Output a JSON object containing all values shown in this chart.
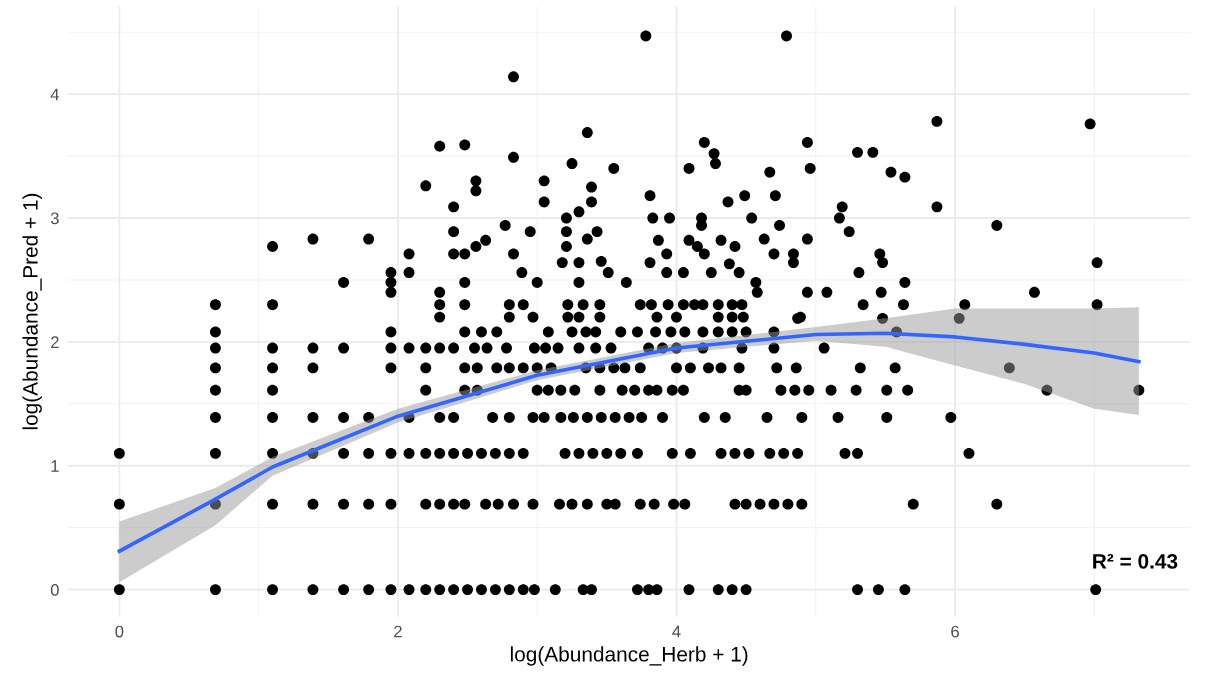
{
  "chart_data": {
    "type": "scatter",
    "xlabel": "log(Abundance_Herb + 1)",
    "ylabel": "log(Abundance_Pred + 1)",
    "xlim": [
      -0.37,
      7.69
    ],
    "ylim": [
      -0.22,
      4.71
    ],
    "xticks": [
      0,
      2,
      4,
      6
    ],
    "yticks": [
      0,
      1,
      2,
      3,
      4
    ],
    "grid": true,
    "marker": "circle",
    "annotations": [
      "R² = 0.43"
    ],
    "series": [
      {
        "color": "#000000",
        "x": [
          0,
          0,
          0,
          0.69,
          0.69,
          0.69,
          0.69,
          0.69,
          0.69,
          0.69,
          0.69,
          0.69,
          1.1,
          1.1,
          1.1,
          1.1,
          1.1,
          1.1,
          1.1,
          1.1,
          1.1,
          1.39,
          1.39,
          1.39,
          1.39,
          1.39,
          1.39,
          1.39,
          1.61,
          1.61,
          1.61,
          1.61,
          1.61,
          1.61,
          1.79,
          1.79,
          1.79,
          1.79,
          1.79,
          1.95,
          1.95,
          1.95,
          1.95,
          1.95,
          1.95,
          1.95,
          1.95,
          1.95,
          2.08,
          2.08,
          2.08,
          2.08,
          2.08,
          2.08,
          2.2,
          2.2,
          2.2,
          2.2,
          2.2,
          2.2,
          2.2,
          2.3,
          2.3,
          2.3,
          2.3,
          2.3,
          2.3,
          2.3,
          2.3,
          2.3
        ],
        "values": [
          0,
          0.69,
          1.1,
          0,
          0.69,
          1.1,
          1.39,
          1.61,
          1.79,
          1.95,
          2.08,
          2.3,
          0,
          0.69,
          1.1,
          1.39,
          1.61,
          1.79,
          1.95,
          2.3,
          2.77,
          0,
          0.69,
          1.1,
          1.39,
          1.79,
          1.95,
          2.83,
          0,
          0.69,
          1.1,
          1.39,
          1.95,
          2.48,
          0,
          0.69,
          1.1,
          1.39,
          2.83,
          0,
          0.69,
          1.1,
          1.79,
          1.95,
          2.08,
          2.4,
          2.48,
          2.56,
          0,
          1.1,
          1.39,
          1.95,
          2.56,
          2.71,
          0,
          0.69,
          1.1,
          1.61,
          1.79,
          1.95,
          3.26,
          0,
          0.69,
          1.1,
          1.39,
          1.95,
          2.2,
          2.3,
          2.4,
          3.58
        ]
      },
      {
        "color": "#000000",
        "x": [
          2.4,
          2.5,
          2.6,
          2.7,
          2.8,
          2.9,
          2.98,
          3.13,
          3.33,
          3.39,
          3.72,
          3.8,
          3.86,
          4.09,
          4.3,
          4.4,
          4.5
        ],
        "values": [
          0,
          0,
          0,
          0,
          0,
          0,
          0,
          0,
          0,
          0,
          0,
          0,
          0,
          0,
          0,
          0,
          0
        ]
      },
      {
        "color": "#000000",
        "x": [
          2.4,
          2.48,
          2.63,
          2.72,
          2.83,
          2.97,
          3.16,
          3.25,
          3.36,
          3.5,
          3.56,
          3.74,
          3.84,
          3.98,
          4.06,
          4.42,
          4.5,
          4.6,
          4.7,
          4.8,
          4.9
        ],
        "values": [
          0.69,
          0.69,
          0.69,
          0.69,
          0.69,
          0.69,
          0.69,
          0.69,
          0.69,
          0.69,
          0.69,
          0.69,
          0.69,
          0.69,
          0.69,
          0.69,
          0.69,
          0.69,
          0.69,
          0.69,
          0.69
        ]
      },
      {
        "color": "#000000",
        "x": [
          2.4,
          2.5,
          2.6,
          2.7,
          2.8,
          2.9,
          3.2,
          3.3,
          3.4,
          3.5,
          3.6,
          3.72,
          3.97,
          4.1,
          4.32,
          4.42,
          4.52,
          4.67,
          4.77,
          4.87
        ],
        "values": [
          1.1,
          1.1,
          1.1,
          1.1,
          1.1,
          1.1,
          1.1,
          1.1,
          1.1,
          1.1,
          1.1,
          1.1,
          1.1,
          1.1,
          1.1,
          1.1,
          1.1,
          1.1,
          1.1,
          1.1
        ]
      },
      {
        "color": "#000000",
        "x": [
          2.4,
          2.68,
          2.8,
          2.97,
          3.05,
          3.17,
          3.26,
          3.36,
          3.46,
          3.56,
          3.66,
          3.75,
          3.9,
          4.2,
          4.35,
          4.65,
          4.9
        ],
        "values": [
          1.39,
          1.39,
          1.39,
          1.39,
          1.39,
          1.39,
          1.39,
          1.39,
          1.39,
          1.39,
          1.39,
          1.39,
          1.39,
          1.39,
          1.39,
          1.39,
          1.39
        ]
      },
      {
        "color": "#000000",
        "x": [
          2.48,
          2.57,
          3.0,
          3.08,
          3.17,
          3.27,
          3.45,
          3.61,
          3.7,
          3.8,
          3.86,
          3.97,
          4.05,
          4.45,
          4.5,
          4.75,
          4.85,
          4.95
        ],
        "values": [
          1.61,
          1.61,
          1.61,
          1.61,
          1.61,
          1.61,
          1.61,
          1.61,
          1.61,
          1.61,
          1.61,
          1.61,
          1.61,
          1.61,
          1.61,
          1.61,
          1.61,
          1.61
        ]
      },
      {
        "color": "#000000",
        "x": [
          2.48,
          2.57,
          2.71,
          2.8,
          2.9,
          3.0,
          3.1,
          3.35,
          3.45,
          3.55,
          3.63,
          3.74,
          4.0,
          4.1,
          4.23,
          4.32,
          4.45,
          4.72,
          4.86
        ],
        "values": [
          1.79,
          1.79,
          1.79,
          1.79,
          1.79,
          1.79,
          1.79,
          1.79,
          1.79,
          1.79,
          1.79,
          1.79,
          1.79,
          1.79,
          1.79,
          1.79,
          1.79,
          1.79,
          1.79
        ]
      },
      {
        "color": "#000000",
        "x": [
          2.4,
          2.55,
          2.64,
          2.78,
          2.98,
          3.06,
          3.15,
          3.3,
          3.42,
          3.53,
          3.8,
          3.9,
          4.0,
          4.19,
          4.47,
          4.7
        ],
        "values": [
          1.95,
          1.95,
          1.95,
          1.95,
          1.95,
          1.95,
          1.95,
          1.95,
          1.95,
          1.95,
          1.95,
          1.95,
          1.95,
          1.95,
          1.95,
          1.95
        ]
      },
      {
        "color": "#000000",
        "x": [
          2.48,
          2.6,
          2.71,
          3.08,
          3.25,
          3.35,
          3.42,
          3.6,
          3.72,
          3.85,
          3.96,
          4.06,
          4.19,
          4.3,
          4.4,
          4.5,
          4.7
        ],
        "values": [
          2.08,
          2.08,
          2.08,
          2.08,
          2.08,
          2.08,
          2.08,
          2.08,
          2.08,
          2.08,
          2.08,
          2.08,
          2.08,
          2.08,
          2.08,
          2.08,
          2.08
        ]
      },
      {
        "color": "#000000",
        "x": [
          2.8,
          2.97,
          3.22,
          3.3,
          3.45,
          3.86,
          4.0,
          4.19,
          4.3,
          4.4,
          4.48,
          4.89
        ],
        "values": [
          2.2,
          2.2,
          2.2,
          2.2,
          2.2,
          2.2,
          2.2,
          null,
          2.2,
          2.2,
          2.2,
          2.2
        ]
      },
      {
        "color": "#000000",
        "x": [
          2.48,
          2.8,
          2.9,
          3.22,
          3.33,
          3.45,
          3.74,
          3.82,
          3.94,
          4.05,
          4.13,
          4.19,
          4.3,
          4.4,
          4.47
        ],
        "values": [
          2.3,
          2.3,
          2.3,
          2.3,
          2.3,
          2.3,
          2.3,
          2.3,
          2.3,
          2.3,
          2.3,
          2.3,
          2.3,
          2.3,
          2.3
        ]
      },
      {
        "color": "#000000",
        "x": [
          2.48,
          2.4,
          2.48,
          2.4,
          2.4,
          2.56,
          2.56,
          2.63,
          2.56,
          2.77,
          2.83,
          2.89,
          2.95,
          3.0,
          3.05,
          3.05,
          3.21,
          3.21,
          3.21,
          3.18,
          3.3,
          3.3,
          3.3,
          3.39,
          3.39,
          3.43,
          3.36,
          3.46,
          3.51,
          3.64,
          3.81,
          3.83,
          3.95,
          3.87,
          3.81,
          3.93,
          3.93,
          4.18,
          4.18,
          4.09,
          4.15,
          4.2,
          4.05,
          4.25,
          4.27,
          4.28,
          4.37,
          4.49,
          4.54,
          4.32,
          4.42,
          4.38,
          4.45,
          4.57,
          4.58,
          4.67,
          4.71,
          4.74,
          4.63,
          4.7,
          4.84,
          4.84,
          4.94,
          4.94,
          4.87
        ],
        "values": [
          2.48,
          2.71,
          2.71,
          2.89,
          3.09,
          3.3,
          3.22,
          2.82,
          2.77,
          2.94,
          2.71,
          2.56,
          2.89,
          2.48,
          3.3,
          3.13,
          3.0,
          2.89,
          2.77,
          2.64,
          3.05,
          2.64,
          2.48,
          3.25,
          3.13,
          2.89,
          2.83,
          2.65,
          2.56,
          2.48,
          3.18,
          3.0,
          3.0,
          2.82,
          2.64,
          2.71,
          2.56,
          3.0,
          2.94,
          2.82,
          2.77,
          2.71,
          2.56,
          2.56,
          3.52,
          3.44,
          3.13,
          3.18,
          3.0,
          2.82,
          2.77,
          2.63,
          2.56,
          2.48,
          2.4,
          3.37,
          3.18,
          2.94,
          2.83,
          2.71,
          2.71,
          2.64,
          2.4,
          2.83,
          2.19
        ]
      },
      {
        "color": "#000000",
        "x": [
          3.78,
          4.79,
          2.83,
          3.36,
          2.83,
          4.2,
          3.25,
          3.55,
          4.09,
          4.94,
          2.48
        ],
        "values": [
          4.47,
          4.47,
          4.14,
          3.69,
          3.49,
          3.61,
          3.44,
          3.4,
          3.4,
          3.61,
          3.59
        ]
      },
      {
        "color": "#000000",
        "x": [
          5.87,
          6.97,
          5.3,
          5.41,
          5.54,
          5.64,
          5.87,
          6.3,
          7.02,
          6.57,
          7.02,
          6.07,
          6.03,
          6.39,
          6.66,
          7.32,
          5.97,
          6.1,
          6.3,
          7.01,
          5.7,
          5.3,
          5.45,
          5.64
        ],
        "values": [
          3.78,
          3.76,
          3.53,
          3.53,
          3.37,
          3.33,
          3.09,
          2.94,
          2.64,
          2.4,
          2.3,
          2.3,
          2.19,
          1.79,
          1.61,
          1.61,
          1.39,
          1.1,
          0.69,
          0,
          0.69,
          0,
          0,
          0
        ]
      },
      {
        "color": "#000000",
        "x": [
          4.96,
          5.19,
          5.17,
          5.24,
          5.46,
          5.48,
          5.31,
          5.64,
          5.47,
          5.08,
          5.34,
          5.63,
          5.48,
          5.58,
          5.06,
          5.32,
          5.57,
          5.11,
          5.29,
          5.51,
          5.66,
          5.16,
          5.51,
          5.21,
          5.3
        ],
        "values": [
          3.4,
          3.09,
          3.0,
          2.89,
          2.71,
          2.64,
          2.56,
          2.48,
          2.4,
          2.4,
          2.3,
          2.3,
          2.19,
          2.08,
          1.95,
          1.79,
          1.79,
          1.61,
          1.61,
          1.61,
          1.61,
          1.39,
          1.39,
          1.1,
          1.1
        ]
      },
      {
        "type": "line",
        "marker": "none",
        "color": "#3366ff",
        "x": [
          0,
          0.69,
          1.1,
          2,
          3,
          4,
          5,
          5.5,
          6,
          6.5,
          7,
          7.32
        ],
        "values": [
          0.31,
          0.73,
          0.99,
          1.4,
          1.73,
          1.95,
          2.06,
          2.07,
          2.04,
          1.98,
          1.91,
          1.84
        ],
        "lower": [
          0.06,
          0.52,
          0.92,
          1.35,
          1.69,
          1.91,
          2.01,
          1.96,
          1.81,
          1.66,
          1.46,
          1.41
        ],
        "upper": [
          0.55,
          0.82,
          1.07,
          1.46,
          1.77,
          1.99,
          2.12,
          2.19,
          2.27,
          2.27,
          2.27,
          2.28
        ]
      }
    ]
  }
}
